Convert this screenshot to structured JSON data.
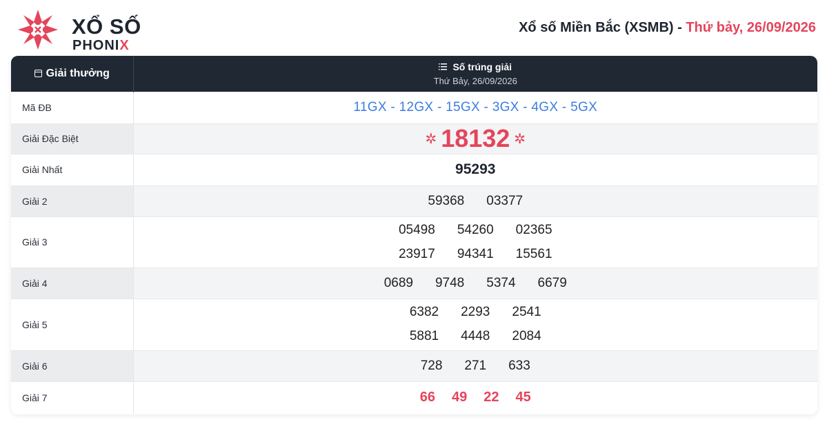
{
  "logo": {
    "line1": "XỔ SỐ",
    "line2_main": "PHONI",
    "line2_x": "X"
  },
  "title": {
    "main": "Xổ số Miền Bắc (XSMB) - ",
    "date": "Thứ bảy, 26/09/2026"
  },
  "table": {
    "col1_header": "Giải thưởng",
    "col2_header": "Số trúng giải",
    "col2_sub": "Thứ Bảy, 26/09/2026",
    "rows": [
      {
        "label": "Mã ĐB",
        "value": "11GX - 12GX - 15GX - 3GX - 4GX - 5GX"
      },
      {
        "label": "Giải Đặc Biệt",
        "value": "18132"
      },
      {
        "label": "Giải Nhất",
        "value": "95293"
      },
      {
        "label": "Giải 2",
        "values": [
          "59368",
          "03377"
        ]
      },
      {
        "label": "Giải 3",
        "lines": [
          [
            "05498",
            "54260",
            "02365"
          ],
          [
            "23917",
            "94341",
            "15561"
          ]
        ]
      },
      {
        "label": "Giải 4",
        "values": [
          "0689",
          "9748",
          "5374",
          "6679"
        ]
      },
      {
        "label": "Giải 5",
        "lines": [
          [
            "6382",
            "2293",
            "2541"
          ],
          [
            "5881",
            "4448",
            "2084"
          ]
        ]
      },
      {
        "label": "Giải 6",
        "values": [
          "728",
          "271",
          "633"
        ]
      },
      {
        "label": "Giải 7",
        "values": [
          "66",
          "49",
          "22",
          "45"
        ]
      }
    ]
  },
  "colors": {
    "accent_red": "#e4455c",
    "header_dark": "#1f2833",
    "code_blue": "#3b7de0"
  },
  "icons": {
    "header_col1": "calendar-icon",
    "header_col2": "list-icon",
    "special_prize_decor": "asterisk-star-icon"
  }
}
